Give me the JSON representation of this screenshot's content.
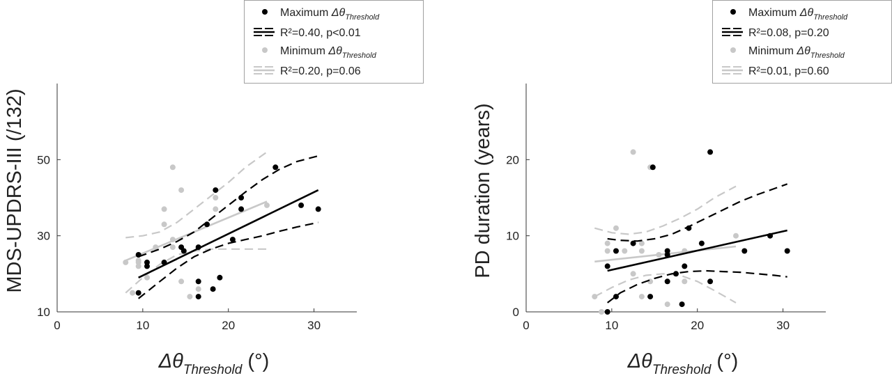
{
  "colors": {
    "max_series": "#000000",
    "min_series": "#c8c8c8",
    "axis": "#333333",
    "legend_border": "#a0a0a0"
  },
  "chart_data": [
    {
      "type": "scatter",
      "ylabel": "MDS-UPDRS-III (/132)",
      "xlabel": {
        "delta": "Δθ",
        "subscript": "Threshold",
        "unit": " (°)"
      },
      "xlim": [
        0,
        35
      ],
      "ylim": [
        10,
        70
      ],
      "xticks": [
        0,
        10,
        20,
        30
      ],
      "yticks": [
        10,
        30,
        50
      ],
      "legend_position": "top-right",
      "series": [
        {
          "key": "max",
          "name": {
            "prefix": "Maximum ",
            "delta": "Δθ",
            "subscript": "Threshold"
          },
          "fit_label": "R²=0.40, p<0.01",
          "points": [
            [
              9.5,
              25
            ],
            [
              9.5,
              15
            ],
            [
              10.5,
              23
            ],
            [
              10.5,
              22
            ],
            [
              12.5,
              23
            ],
            [
              14.5,
              27
            ],
            [
              14.8,
              26
            ],
            [
              16.5,
              27
            ],
            [
              16.5,
              18
            ],
            [
              16.5,
              14
            ],
            [
              17.5,
              33
            ],
            [
              18.2,
              16
            ],
            [
              18.5,
              42
            ],
            [
              19,
              19
            ],
            [
              20.5,
              29
            ],
            [
              21.5,
              40
            ],
            [
              21.5,
              37
            ],
            [
              25.5,
              48
            ],
            [
              28.5,
              38
            ],
            [
              30.5,
              37
            ]
          ],
          "fit": [
            [
              9.5,
              19.0
            ],
            [
              30.5,
              42.0
            ]
          ],
          "ci_upper": [
            [
              9.5,
              24.5
            ],
            [
              12,
              26.5
            ],
            [
              14,
              28.5
            ],
            [
              16,
              31.0
            ],
            [
              18,
              34.5
            ],
            [
              20,
              38.0
            ],
            [
              22,
              41.5
            ],
            [
              24,
              44.8
            ],
            [
              26,
              47.5
            ],
            [
              28,
              49.5
            ],
            [
              30.5,
              51.0
            ]
          ],
          "ci_lower": [
            [
              9.5,
              13.5
            ],
            [
              12,
              18.0
            ],
            [
              14,
              21.5
            ],
            [
              16,
              24.5
            ],
            [
              18,
              26.5
            ],
            [
              20,
              28.0
            ],
            [
              22,
              29.0
            ],
            [
              24,
              30.0
            ],
            [
              26,
              31.2
            ],
            [
              28,
              32.3
            ],
            [
              30.5,
              33.5
            ]
          ]
        },
        {
          "key": "min",
          "name": {
            "prefix": "Minimum ",
            "delta": "Δθ",
            "subscript": "Threshold"
          },
          "fit_label": "R²=0.20, p=0.06",
          "points": [
            [
              8,
              23
            ],
            [
              8.8,
              15
            ],
            [
              9.5,
              23.5
            ],
            [
              9.5,
              23
            ],
            [
              9.5,
              22
            ],
            [
              10.5,
              19
            ],
            [
              11.5,
              27
            ],
            [
              12.5,
              37
            ],
            [
              12.5,
              33
            ],
            [
              13.5,
              48
            ],
            [
              13.5,
              29
            ],
            [
              13.5,
              27
            ],
            [
              14.5,
              42
            ],
            [
              14.5,
              18
            ],
            [
              15.5,
              14
            ],
            [
              16.5,
              16
            ],
            [
              18.5,
              40
            ],
            [
              18.5,
              37
            ],
            [
              24.5,
              38
            ]
          ],
          "fit": [
            [
              8,
              23.5
            ],
            [
              24.5,
              39.0
            ]
          ],
          "ci_upper": [
            [
              8,
              29.5
            ],
            [
              10,
              30.0
            ],
            [
              12,
              31.0
            ],
            [
              14,
              33.5
            ],
            [
              16,
              37.0
            ],
            [
              18,
              40.5
            ],
            [
              20,
              44.0
            ],
            [
              22,
              48.0
            ],
            [
              24.5,
              52.0
            ]
          ],
          "ci_lower": [
            [
              8,
              15.0
            ],
            [
              10,
              19.0
            ],
            [
              12,
              22.5
            ],
            [
              14,
              25.0
            ],
            [
              16,
              26.0
            ],
            [
              18,
              26.5
            ],
            [
              20,
              26.5
            ],
            [
              22,
              26.5
            ],
            [
              24.5,
              26.5
            ]
          ]
        }
      ]
    },
    {
      "type": "scatter",
      "ylabel": "PD duration (years)",
      "xlabel": {
        "delta": "Δθ",
        "subscript": "Threshold",
        "unit": " (°)"
      },
      "xlim": [
        0,
        35
      ],
      "ylim": [
        0,
        30
      ],
      "xticks": [
        0,
        10,
        20,
        30
      ],
      "yticks": [
        0,
        10,
        20
      ],
      "legend_position": "top-right",
      "series": [
        {
          "key": "max",
          "name": {
            "prefix": "Maximum ",
            "delta": "Δθ",
            "subscript": "Threshold"
          },
          "fit_label": "R²=0.08, p=0.20",
          "points": [
            [
              9.5,
              6
            ],
            [
              9.5,
              0
            ],
            [
              10.5,
              8
            ],
            [
              10.5,
              2
            ],
            [
              12.5,
              9
            ],
            [
              14.5,
              2
            ],
            [
              14.8,
              19
            ],
            [
              16.5,
              8
            ],
            [
              16.5,
              7.5
            ],
            [
              16.5,
              4
            ],
            [
              17.5,
              5
            ],
            [
              18.2,
              1
            ],
            [
              18.5,
              6
            ],
            [
              19,
              11
            ],
            [
              20.5,
              9
            ],
            [
              21.5,
              21
            ],
            [
              21.5,
              4
            ],
            [
              25.5,
              8
            ],
            [
              28.5,
              10
            ],
            [
              30.5,
              8
            ]
          ],
          "fit": [
            [
              9.5,
              5.4
            ],
            [
              30.5,
              10.7
            ]
          ],
          "ci_upper": [
            [
              9.5,
              9.6
            ],
            [
              11,
              9.4
            ],
            [
              13,
              9.3
            ],
            [
              15,
              9.6
            ],
            [
              17,
              10.2
            ],
            [
              19,
              11.2
            ],
            [
              21,
              12.3
            ],
            [
              23,
              13.4
            ],
            [
              25,
              14.5
            ],
            [
              27,
              15.4
            ],
            [
              29,
              16.2
            ],
            [
              30.5,
              16.8
            ]
          ],
          "ci_lower": [
            [
              9.5,
              1.2
            ],
            [
              11,
              2.5
            ],
            [
              13,
              3.6
            ],
            [
              15,
              4.4
            ],
            [
              17,
              5.0
            ],
            [
              19,
              5.3
            ],
            [
              21,
              5.4
            ],
            [
              23,
              5.3
            ],
            [
              25,
              5.2
            ],
            [
              27,
              5.0
            ],
            [
              29,
              4.8
            ],
            [
              30.5,
              4.6
            ]
          ]
        },
        {
          "key": "min",
          "name": {
            "prefix": "Minimum ",
            "delta": "Δθ",
            "subscript": "Threshold"
          },
          "fit_label": "R²=0.01, p=0.60",
          "points": [
            [
              8,
              2
            ],
            [
              8.8,
              0
            ],
            [
              9.5,
              9
            ],
            [
              9.5,
              8
            ],
            [
              10.5,
              11
            ],
            [
              11.5,
              8
            ],
            [
              12.5,
              21
            ],
            [
              12.5,
              5
            ],
            [
              13.5,
              9
            ],
            [
              13.5,
              8
            ],
            [
              13.5,
              2
            ],
            [
              14.5,
              19
            ],
            [
              14.5,
              4
            ],
            [
              15.5,
              7.5
            ],
            [
              16.5,
              1
            ],
            [
              18.5,
              8
            ],
            [
              18.5,
              4
            ],
            [
              24.5,
              10
            ]
          ],
          "fit": [
            [
              8,
              6.6
            ],
            [
              24.5,
              8.6
            ]
          ],
          "ci_upper": [
            [
              8,
              11.0
            ],
            [
              10,
              10.4
            ],
            [
              12,
              10.2
            ],
            [
              14,
              10.5
            ],
            [
              16,
              11.3
            ],
            [
              18,
              12.3
            ],
            [
              20,
              13.5
            ],
            [
              22,
              15.0
            ],
            [
              24.5,
              16.5
            ]
          ],
          "ci_lower": [
            [
              8,
              2.0
            ],
            [
              10,
              3.2
            ],
            [
              12,
              4.2
            ],
            [
              14,
              4.8
            ],
            [
              16,
              5.0
            ],
            [
              18,
              4.8
            ],
            [
              20,
              4.0
            ],
            [
              22,
              2.8
            ],
            [
              24.5,
              1.2
            ]
          ]
        }
      ]
    }
  ]
}
